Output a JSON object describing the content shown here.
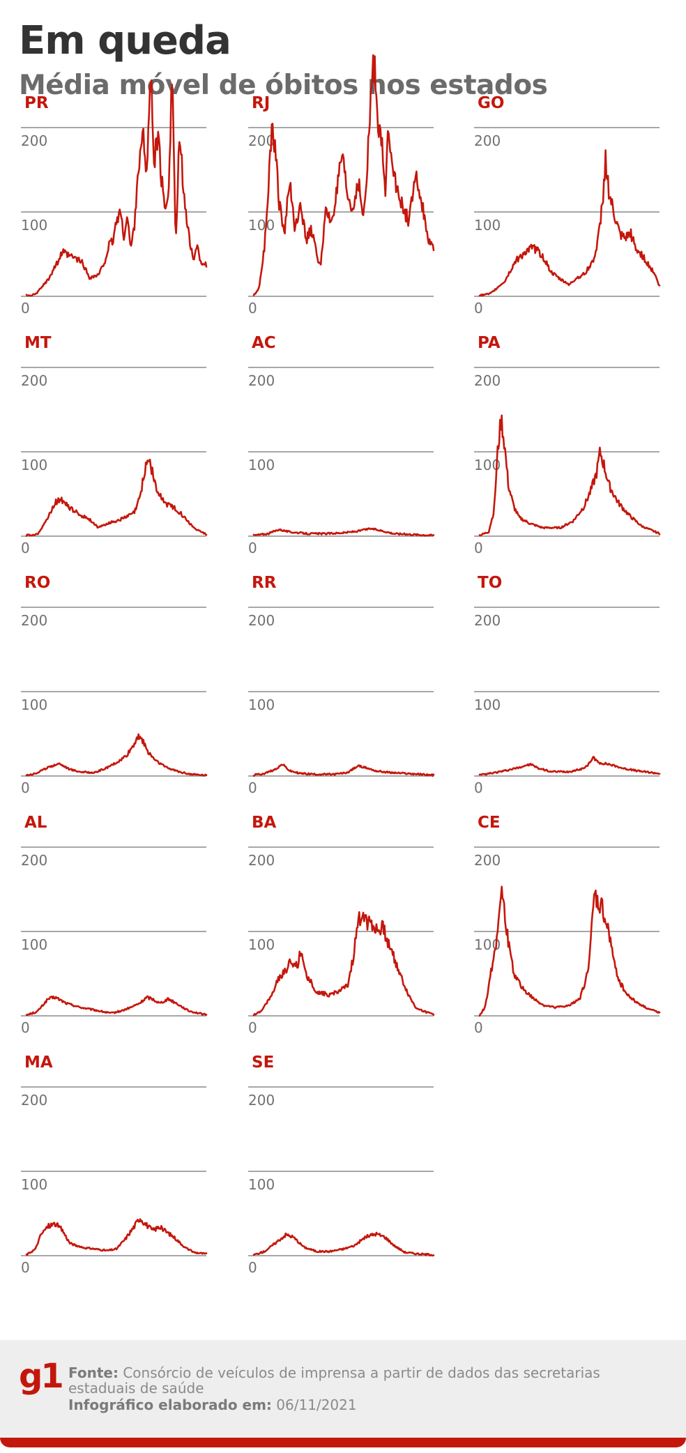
{
  "header": {
    "title": "Em queda",
    "subtitle": "Média móvel de óbitos nos estados"
  },
  "colors": {
    "line": "#c4170c",
    "label": "#c4170c",
    "grid": "#8a8a8a",
    "tick": "#707070",
    "title": "#333333",
    "subtitle": "#6b6b6b"
  },
  "chart_data": [
    {
      "type": "line",
      "state": "PR",
      "yticks": [
        0,
        100,
        200
      ],
      "ylim": [
        0,
        200
      ],
      "keypoints": [
        [
          0,
          1
        ],
        [
          0.05,
          2
        ],
        [
          0.12,
          20
        ],
        [
          0.2,
          52
        ],
        [
          0.23,
          48
        ],
        [
          0.27,
          45
        ],
        [
          0.31,
          40
        ],
        [
          0.35,
          22
        ],
        [
          0.4,
          25
        ],
        [
          0.43,
          38
        ],
        [
          0.46,
          60
        ],
        [
          0.48,
          65
        ],
        [
          0.5,
          88
        ],
        [
          0.52,
          102
        ],
        [
          0.54,
          70
        ],
        [
          0.56,
          95
        ],
        [
          0.58,
          55
        ],
        [
          0.6,
          85
        ],
        [
          0.62,
          150
        ],
        [
          0.65,
          188
        ],
        [
          0.67,
          150
        ],
        [
          0.69,
          265
        ],
        [
          0.71,
          160
        ],
        [
          0.73,
          190
        ],
        [
          0.75,
          140
        ],
        [
          0.77,
          100
        ],
        [
          0.79,
          130
        ],
        [
          0.81,
          268
        ],
        [
          0.83,
          60
        ],
        [
          0.85,
          185
        ],
        [
          0.87,
          140
        ],
        [
          0.89,
          90
        ],
        [
          0.91,
          60
        ],
        [
          0.93,
          45
        ],
        [
          0.95,
          58
        ],
        [
          0.97,
          40
        ],
        [
          1.0,
          38
        ]
      ]
    },
    {
      "type": "line",
      "state": "RJ",
      "yticks": [
        0,
        100,
        200
      ],
      "ylim": [
        0,
        200
      ],
      "keypoints": [
        [
          0,
          1
        ],
        [
          0.03,
          10
        ],
        [
          0.06,
          60
        ],
        [
          0.08,
          125
        ],
        [
          0.1,
          205
        ],
        [
          0.12,
          180
        ],
        [
          0.14,
          110
        ],
        [
          0.17,
          75
        ],
        [
          0.2,
          135
        ],
        [
          0.23,
          80
        ],
        [
          0.26,
          115
        ],
        [
          0.29,
          65
        ],
        [
          0.32,
          80
        ],
        [
          0.35,
          50
        ],
        [
          0.37,
          35
        ],
        [
          0.4,
          100
        ],
        [
          0.43,
          88
        ],
        [
          0.46,
          120
        ],
        [
          0.49,
          165
        ],
        [
          0.52,
          120
        ],
        [
          0.55,
          100
        ],
        [
          0.58,
          140
        ],
        [
          0.61,
          90
        ],
        [
          0.63,
          145
        ],
        [
          0.65,
          235
        ],
        [
          0.67,
          278
        ],
        [
          0.69,
          215
        ],
        [
          0.71,
          185
        ],
        [
          0.73,
          120
        ],
        [
          0.75,
          205
        ],
        [
          0.77,
          165
        ],
        [
          0.8,
          120
        ],
        [
          0.83,
          105
        ],
        [
          0.86,
          90
        ],
        [
          0.89,
          125
        ],
        [
          0.91,
          140
        ],
        [
          0.93,
          110
        ],
        [
          0.95,
          95
        ],
        [
          0.97,
          65
        ],
        [
          1.0,
          55
        ]
      ]
    },
    {
      "type": "line",
      "state": "GO",
      "yticks": [
        0,
        100,
        200
      ],
      "ylim": [
        0,
        200
      ],
      "keypoints": [
        [
          0,
          1
        ],
        [
          0.06,
          3
        ],
        [
          0.14,
          18
        ],
        [
          0.2,
          42
        ],
        [
          0.25,
          52
        ],
        [
          0.3,
          58
        ],
        [
          0.35,
          48
        ],
        [
          0.4,
          28
        ],
        [
          0.45,
          20
        ],
        [
          0.5,
          14
        ],
        [
          0.54,
          22
        ],
        [
          0.58,
          26
        ],
        [
          0.62,
          38
        ],
        [
          0.65,
          55
        ],
        [
          0.67,
          85
        ],
        [
          0.69,
          130
        ],
        [
          0.7,
          165
        ],
        [
          0.72,
          120
        ],
        [
          0.75,
          95
        ],
        [
          0.78,
          72
        ],
        [
          0.81,
          68
        ],
        [
          0.84,
          75
        ],
        [
          0.87,
          55
        ],
        [
          0.9,
          50
        ],
        [
          0.93,
          40
        ],
        [
          0.97,
          28
        ],
        [
          1.0,
          12
        ]
      ]
    },
    {
      "type": "line",
      "state": "MT",
      "yticks": [
        0,
        100,
        200
      ],
      "ylim": [
        0,
        200
      ],
      "keypoints": [
        [
          0,
          1
        ],
        [
          0.06,
          2
        ],
        [
          0.12,
          22
        ],
        [
          0.16,
          40
        ],
        [
          0.19,
          45
        ],
        [
          0.23,
          35
        ],
        [
          0.3,
          25
        ],
        [
          0.35,
          20
        ],
        [
          0.4,
          10
        ],
        [
          0.45,
          15
        ],
        [
          0.5,
          18
        ],
        [
          0.55,
          22
        ],
        [
          0.6,
          28
        ],
        [
          0.63,
          45
        ],
        [
          0.66,
          80
        ],
        [
          0.68,
          93
        ],
        [
          0.7,
          75
        ],
        [
          0.73,
          50
        ],
        [
          0.78,
          38
        ],
        [
          0.83,
          33
        ],
        [
          0.88,
          22
        ],
        [
          0.93,
          10
        ],
        [
          1.0,
          2
        ]
      ]
    },
    {
      "type": "line",
      "state": "AC",
      "yticks": [
        0,
        100,
        200
      ],
      "ylim": [
        0,
        200
      ],
      "keypoints": [
        [
          0,
          1
        ],
        [
          0.08,
          3
        ],
        [
          0.14,
          8
        ],
        [
          0.2,
          5
        ],
        [
          0.3,
          3
        ],
        [
          0.4,
          3
        ],
        [
          0.5,
          4
        ],
        [
          0.58,
          6
        ],
        [
          0.65,
          9
        ],
        [
          0.7,
          7
        ],
        [
          0.78,
          3
        ],
        [
          0.88,
          2
        ],
        [
          1.0,
          1
        ]
      ]
    },
    {
      "type": "line",
      "state": "PA",
      "yticks": [
        0,
        100,
        200
      ],
      "ylim": [
        0,
        200
      ],
      "keypoints": [
        [
          0,
          1
        ],
        [
          0.05,
          5
        ],
        [
          0.08,
          30
        ],
        [
          0.1,
          100
        ],
        [
          0.12,
          140
        ],
        [
          0.14,
          105
        ],
        [
          0.16,
          60
        ],
        [
          0.19,
          35
        ],
        [
          0.22,
          22
        ],
        [
          0.28,
          15
        ],
        [
          0.35,
          10
        ],
        [
          0.45,
          10
        ],
        [
          0.52,
          18
        ],
        [
          0.58,
          35
        ],
        [
          0.62,
          55
        ],
        [
          0.65,
          75
        ],
        [
          0.67,
          100
        ],
        [
          0.69,
          85
        ],
        [
          0.72,
          60
        ],
        [
          0.77,
          40
        ],
        [
          0.83,
          25
        ],
        [
          0.9,
          12
        ],
        [
          1.0,
          3
        ]
      ]
    },
    {
      "type": "line",
      "state": "RO",
      "yticks": [
        0,
        100,
        200
      ],
      "ylim": [
        0,
        200
      ],
      "keypoints": [
        [
          0,
          1
        ],
        [
          0.05,
          3
        ],
        [
          0.12,
          10
        ],
        [
          0.18,
          15
        ],
        [
          0.24,
          8
        ],
        [
          0.3,
          5
        ],
        [
          0.38,
          4
        ],
        [
          0.45,
          10
        ],
        [
          0.52,
          18
        ],
        [
          0.56,
          25
        ],
        [
          0.6,
          38
        ],
        [
          0.62,
          48
        ],
        [
          0.64,
          45
        ],
        [
          0.67,
          30
        ],
        [
          0.72,
          18
        ],
        [
          0.78,
          10
        ],
        [
          0.85,
          5
        ],
        [
          0.92,
          2
        ],
        [
          1.0,
          1
        ]
      ]
    },
    {
      "type": "line",
      "state": "RR",
      "yticks": [
        0,
        100,
        200
      ],
      "ylim": [
        0,
        200
      ],
      "keypoints": [
        [
          0,
          1
        ],
        [
          0.06,
          3
        ],
        [
          0.12,
          8
        ],
        [
          0.16,
          14
        ],
        [
          0.2,
          6
        ],
        [
          0.26,
          3
        ],
        [
          0.35,
          2
        ],
        [
          0.45,
          2
        ],
        [
          0.52,
          4
        ],
        [
          0.58,
          12
        ],
        [
          0.62,
          10
        ],
        [
          0.68,
          6
        ],
        [
          0.76,
          4
        ],
        [
          0.85,
          3
        ],
        [
          1.0,
          1
        ]
      ]
    },
    {
      "type": "line",
      "state": "TO",
      "yticks": [
        0,
        100,
        200
      ],
      "ylim": [
        0,
        200
      ],
      "keypoints": [
        [
          0,
          1
        ],
        [
          0.06,
          3
        ],
        [
          0.14,
          6
        ],
        [
          0.22,
          10
        ],
        [
          0.28,
          14
        ],
        [
          0.33,
          9
        ],
        [
          0.4,
          5
        ],
        [
          0.5,
          5
        ],
        [
          0.56,
          8
        ],
        [
          0.6,
          12
        ],
        [
          0.63,
          22
        ],
        [
          0.66,
          16
        ],
        [
          0.72,
          14
        ],
        [
          0.8,
          9
        ],
        [
          0.88,
          6
        ],
        [
          1.0,
          3
        ]
      ]
    },
    {
      "type": "line",
      "state": "AL",
      "yticks": [
        0,
        100,
        200
      ],
      "ylim": [
        0,
        200
      ],
      "keypoints": [
        [
          0,
          1
        ],
        [
          0.06,
          5
        ],
        [
          0.12,
          20
        ],
        [
          0.16,
          22
        ],
        [
          0.22,
          15
        ],
        [
          0.3,
          10
        ],
        [
          0.4,
          6
        ],
        [
          0.47,
          3
        ],
        [
          0.53,
          6
        ],
        [
          0.58,
          10
        ],
        [
          0.63,
          15
        ],
        [
          0.67,
          22
        ],
        [
          0.7,
          20
        ],
        [
          0.74,
          15
        ],
        [
          0.79,
          20
        ],
        [
          0.84,
          14
        ],
        [
          0.9,
          6
        ],
        [
          1.0,
          1
        ]
      ]
    },
    {
      "type": "line",
      "state": "BA",
      "yticks": [
        0,
        100,
        200
      ],
      "ylim": [
        0,
        200
      ],
      "keypoints": [
        [
          0,
          1
        ],
        [
          0.04,
          5
        ],
        [
          0.1,
          25
        ],
        [
          0.14,
          45
        ],
        [
          0.18,
          55
        ],
        [
          0.21,
          65
        ],
        [
          0.24,
          58
        ],
        [
          0.26,
          75
        ],
        [
          0.28,
          60
        ],
        [
          0.3,
          45
        ],
        [
          0.32,
          40
        ],
        [
          0.35,
          28
        ],
        [
          0.42,
          25
        ],
        [
          0.48,
          30
        ],
        [
          0.52,
          35
        ],
        [
          0.55,
          65
        ],
        [
          0.58,
          110
        ],
        [
          0.61,
          125
        ],
        [
          0.63,
          110
        ],
        [
          0.65,
          115
        ],
        [
          0.68,
          100
        ],
        [
          0.72,
          105
        ],
        [
          0.75,
          85
        ],
        [
          0.78,
          70
        ],
        [
          0.82,
          45
        ],
        [
          0.86,
          25
        ],
        [
          0.9,
          10
        ],
        [
          0.95,
          5
        ],
        [
          1.0,
          2
        ]
      ]
    },
    {
      "type": "line",
      "state": "CE",
      "yticks": [
        0,
        100,
        200
      ],
      "ylim": [
        0,
        200
      ],
      "keypoints": [
        [
          0,
          1
        ],
        [
          0.03,
          10
        ],
        [
          0.07,
          60
        ],
        [
          0.1,
          100
        ],
        [
          0.12,
          150
        ],
        [
          0.14,
          120
        ],
        [
          0.17,
          70
        ],
        [
          0.2,
          45
        ],
        [
          0.25,
          30
        ],
        [
          0.3,
          20
        ],
        [
          0.36,
          12
        ],
        [
          0.42,
          10
        ],
        [
          0.5,
          12
        ],
        [
          0.56,
          22
        ],
        [
          0.6,
          50
        ],
        [
          0.62,
          95
        ],
        [
          0.64,
          145
        ],
        [
          0.66,
          130
        ],
        [
          0.68,
          130
        ],
        [
          0.7,
          110
        ],
        [
          0.72,
          100
        ],
        [
          0.75,
          60
        ],
        [
          0.78,
          40
        ],
        [
          0.82,
          25
        ],
        [
          0.88,
          15
        ],
        [
          0.94,
          8
        ],
        [
          1.0,
          4
        ]
      ]
    },
    {
      "type": "line",
      "state": "MA",
      "yticks": [
        0,
        100,
        200
      ],
      "ylim": [
        0,
        200
      ],
      "keypoints": [
        [
          0,
          1
        ],
        [
          0.05,
          8
        ],
        [
          0.08,
          25
        ],
        [
          0.12,
          35
        ],
        [
          0.16,
          38
        ],
        [
          0.2,
          30
        ],
        [
          0.24,
          15
        ],
        [
          0.3,
          10
        ],
        [
          0.38,
          8
        ],
        [
          0.45,
          6
        ],
        [
          0.5,
          8
        ],
        [
          0.55,
          20
        ],
        [
          0.6,
          35
        ],
        [
          0.63,
          45
        ],
        [
          0.66,
          38
        ],
        [
          0.7,
          30
        ],
        [
          0.74,
          34
        ],
        [
          0.78,
          28
        ],
        [
          0.82,
          22
        ],
        [
          0.88,
          10
        ],
        [
          0.93,
          4
        ],
        [
          1.0,
          2
        ]
      ]
    },
    {
      "type": "line",
      "state": "SE",
      "yticks": [
        0,
        100,
        200
      ],
      "ylim": [
        0,
        200
      ],
      "keypoints": [
        [
          0,
          1
        ],
        [
          0.06,
          5
        ],
        [
          0.12,
          15
        ],
        [
          0.18,
          25
        ],
        [
          0.22,
          22
        ],
        [
          0.28,
          10
        ],
        [
          0.35,
          5
        ],
        [
          0.42,
          5
        ],
        [
          0.5,
          8
        ],
        [
          0.56,
          12
        ],
        [
          0.62,
          22
        ],
        [
          0.68,
          26
        ],
        [
          0.73,
          22
        ],
        [
          0.78,
          12
        ],
        [
          0.84,
          4
        ],
        [
          0.92,
          2
        ],
        [
          1.0,
          1
        ]
      ]
    }
  ],
  "footer": {
    "logo": "g1",
    "source_label": "Fonte:",
    "source_text": "Consórcio de veículos de imprensa a partir de dados das secretarias estaduais de saúde",
    "date_label": "Infográfico elaborado em:",
    "date_text": "06/11/2021"
  }
}
